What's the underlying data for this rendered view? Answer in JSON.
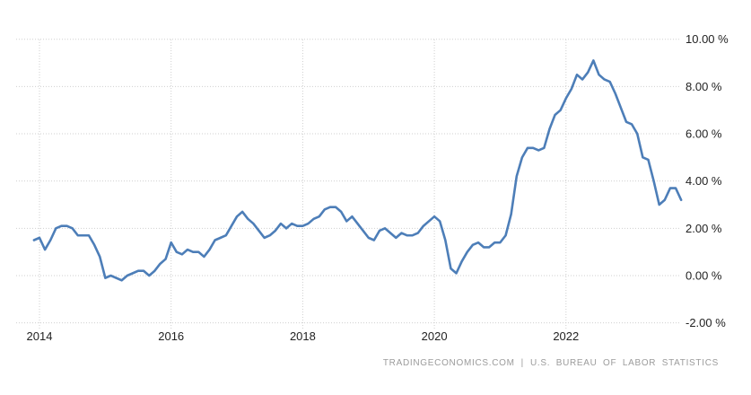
{
  "chart_data": {
    "type": "line",
    "title": "",
    "xlabel": "",
    "ylabel": "",
    "unit": "%",
    "frequency": "monthly",
    "x_start": "2013-12",
    "x_end": "2023-10",
    "values": [
      1.5,
      1.6,
      1.1,
      1.5,
      2.0,
      2.1,
      2.1,
      2.0,
      1.7,
      1.7,
      1.7,
      1.3,
      0.8,
      -0.1,
      0.0,
      -0.1,
      -0.2,
      0.0,
      0.1,
      0.2,
      0.2,
      0.0,
      0.2,
      0.5,
      0.7,
      1.4,
      1.0,
      0.9,
      1.1,
      1.0,
      1.0,
      0.8,
      1.1,
      1.5,
      1.6,
      1.7,
      2.1,
      2.5,
      2.7,
      2.4,
      2.2,
      1.9,
      1.6,
      1.7,
      1.9,
      2.2,
      2.0,
      2.2,
      2.1,
      2.1,
      2.2,
      2.4,
      2.5,
      2.8,
      2.9,
      2.9,
      2.7,
      2.3,
      2.5,
      2.2,
      1.9,
      1.6,
      1.5,
      1.9,
      2.0,
      1.8,
      1.6,
      1.8,
      1.7,
      1.7,
      1.8,
      2.1,
      2.3,
      2.5,
      2.3,
      1.5,
      0.3,
      0.1,
      0.6,
      1.0,
      1.3,
      1.4,
      1.2,
      1.2,
      1.4,
      1.4,
      1.7,
      2.6,
      4.2,
      5.0,
      5.4,
      5.4,
      5.3,
      5.4,
      6.2,
      6.8,
      7.0,
      7.5,
      7.9,
      8.5,
      8.3,
      8.6,
      9.1,
      8.5,
      8.3,
      8.2,
      7.7,
      7.1,
      6.5,
      6.4,
      6.0,
      5.0,
      4.9,
      4.0,
      3.0,
      3.2,
      3.7,
      3.7,
      3.2
    ],
    "ylim": [
      -2,
      10
    ],
    "y_ticks": [
      {
        "value": 10,
        "label": "10.00 %"
      },
      {
        "value": 8,
        "label": "8.00 %"
      },
      {
        "value": 6,
        "label": "6.00 %"
      },
      {
        "value": 4,
        "label": "4.00 %"
      },
      {
        "value": 2,
        "label": "2.00 %"
      },
      {
        "value": 0,
        "label": "0.00 %"
      },
      {
        "value": -2,
        "label": "-2.00 %"
      }
    ],
    "x_ticks": [
      {
        "value": 2014,
        "label": "2014"
      },
      {
        "value": 2016,
        "label": "2016"
      },
      {
        "value": 2018,
        "label": "2018"
      },
      {
        "value": 2020,
        "label": "2020"
      },
      {
        "value": 2022,
        "label": "2022"
      }
    ],
    "grid": "dotted",
    "legend": "none",
    "line_color": "#4d7eb8"
  },
  "footer": {
    "left": "TRADINGECONOMICS.COM",
    "separator": "|",
    "right": "U.S. BUREAU OF LABOR STATISTICS"
  },
  "colors": {
    "line": "#4d7eb8",
    "grid": "#cfcfcf",
    "axis_text": "#222222",
    "footer_text": "#9b9b9b",
    "background": "#ffffff"
  }
}
